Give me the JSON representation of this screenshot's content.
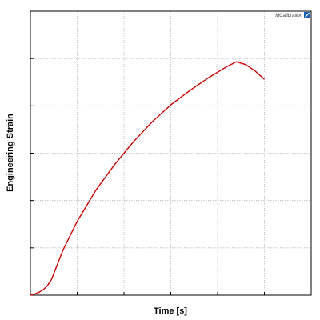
{
  "chart_data": {
    "type": "line",
    "title": "",
    "xlabel": "Time [s]",
    "ylabel": "Engineering Strain",
    "x_tick_labels": [],
    "y_tick_labels": [],
    "grid": true,
    "series": [
      {
        "color": "#cc0000",
        "x": [
          0.0,
          0.05,
          0.12,
          0.2,
          0.28,
          0.36,
          0.45,
          0.7,
          1.0,
          1.4,
          1.8,
          2.2,
          2.6,
          3.0,
          3.4,
          3.8,
          4.2,
          4.4,
          4.6,
          4.8,
          5.0
        ],
        "y": [
          0.0,
          0.002,
          0.006,
          0.012,
          0.02,
          0.033,
          0.055,
          0.16,
          0.26,
          0.37,
          0.46,
          0.54,
          0.61,
          0.67,
          0.72,
          0.765,
          0.805,
          0.822,
          0.812,
          0.79,
          0.76
        ]
      }
    ],
    "xlim": [
      0,
      6
    ],
    "ylim": [
      0,
      1
    ]
  },
  "logo": {
    "text": "MCalibration",
    "icon": "calibration-logo-icon"
  },
  "colors": {
    "line": "#cc0000",
    "grid": "#bbbbbb",
    "logo": "#1a5fb4"
  }
}
